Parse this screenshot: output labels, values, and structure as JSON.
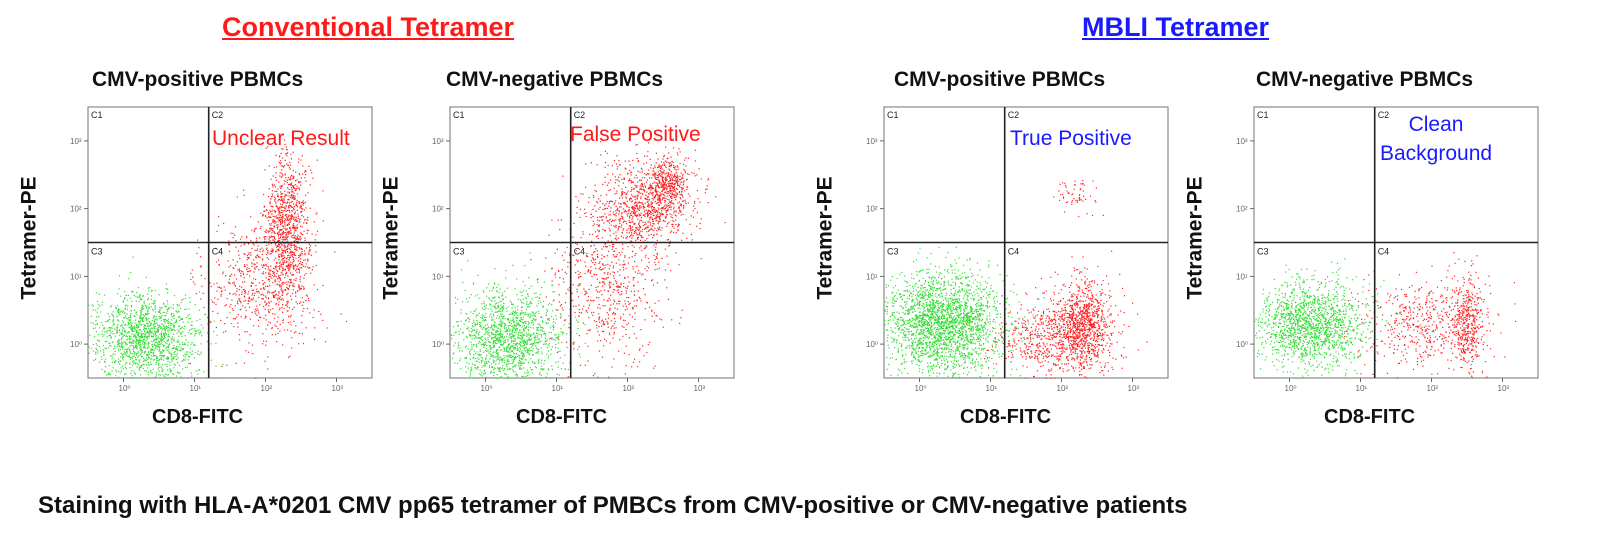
{
  "headers": [
    {
      "label": "Conventional Tetramer",
      "color": "#ff1a1a"
    },
    {
      "label": "MBLI Tetramer",
      "color": "#1a1aff"
    }
  ],
  "caption": "Staining with HLA-A*0201 CMV pp65 tetramer of PMBCs from CMV-positive or CMV-negative patients",
  "colors": {
    "negative_population": "#33dd33",
    "positive_population": "#ff2222",
    "conventional": "#ff1a1a",
    "mbli": "#1a1aff"
  },
  "chart_data": [
    {
      "type": "scatter",
      "title": "CMV-positive PBMCs",
      "xlabel": "CD8-FITC",
      "ylabel": "Tetramer-PE",
      "gates": [
        "C1",
        "C2",
        "C3",
        "C4"
      ],
      "x_ticks": [
        "10⁰",
        "10¹",
        "10²",
        "10³"
      ],
      "y_ticks": [
        "10⁰",
        "10¹",
        "10²",
        "10³"
      ],
      "xlim": [
        -0.5,
        3.5
      ],
      "ylim": [
        -0.5,
        3.5
      ],
      "log_scale": true,
      "quadrant_gate": {
        "x": 1.2,
        "y": 1.5
      },
      "annotation": {
        "text": [
          "Unclear Result"
        ],
        "color": "#ff1a1a"
      },
      "series": [
        {
          "color": "#33dd33",
          "clusters": [
            {
              "cx": 0.3,
              "cy": 0.1,
              "sx": 0.38,
              "sy": 0.32,
              "n": 1500
            }
          ]
        },
        {
          "color": "#ff2222",
          "clusters": [
            {
              "cx": 1.9,
              "cy": 0.9,
              "sx": 0.4,
              "sy": 0.5,
              "n": 600
            },
            {
              "cx": 2.3,
              "cy": 1.7,
              "sx": 0.17,
              "sy": 0.55,
              "n": 1000
            }
          ]
        }
      ]
    },
    {
      "type": "scatter",
      "title": "CMV-negative PBMCs",
      "xlabel": "CD8-FITC",
      "ylabel": "Tetramer-PE",
      "gates": [
        "C1",
        "C2",
        "C3",
        "C4"
      ],
      "x_ticks": [
        "10⁰",
        "10¹",
        "10²",
        "10³"
      ],
      "y_ticks": [
        "10⁰",
        "10¹",
        "10²",
        "10³"
      ],
      "xlim": [
        -0.5,
        3.5
      ],
      "ylim": [
        -0.5,
        3.5
      ],
      "log_scale": true,
      "quadrant_gate": {
        "x": 1.2,
        "y": 1.5
      },
      "annotation": {
        "text": [
          "False Positive"
        ],
        "color": "#ff1a1a"
      },
      "series": [
        {
          "color": "#33dd33",
          "clusters": [
            {
              "cx": 0.3,
              "cy": 0.1,
              "sx": 0.38,
              "sy": 0.35,
              "n": 1500
            }
          ]
        },
        {
          "color": "#ff2222",
          "clusters": [
            {
              "cx": 1.7,
              "cy": 0.8,
              "sx": 0.4,
              "sy": 0.55,
              "n": 600
            },
            {
              "cx": 2.2,
              "cy": 2.0,
              "sx": 0.35,
              "sy": 0.35,
              "n": 900
            },
            {
              "cx": 2.55,
              "cy": 2.4,
              "sx": 0.15,
              "sy": 0.22,
              "n": 400
            }
          ]
        }
      ]
    },
    {
      "type": "scatter",
      "title": "CMV-positive PBMCs",
      "xlabel": "CD8-FITC",
      "ylabel": "Tetramer-PE",
      "gates": [
        "C1",
        "C2",
        "C3",
        "C4"
      ],
      "x_ticks": [
        "10⁰",
        "10¹",
        "10²",
        "10³"
      ],
      "y_ticks": [
        "10⁰",
        "10¹",
        "10²",
        "10³"
      ],
      "xlim": [
        -0.5,
        3.5
      ],
      "ylim": [
        -0.5,
        3.5
      ],
      "log_scale": true,
      "quadrant_gate": {
        "x": 1.2,
        "y": 1.5
      },
      "annotation": {
        "text": [
          "True Positive"
        ],
        "color": "#1a1aff"
      },
      "series": [
        {
          "color": "#33dd33",
          "clusters": [
            {
              "cx": 0.35,
              "cy": 0.3,
              "sx": 0.42,
              "sy": 0.38,
              "n": 2400
            }
          ]
        },
        {
          "color": "#ff2222",
          "clusters": [
            {
              "cx": 1.9,
              "cy": 0.1,
              "sx": 0.42,
              "sy": 0.3,
              "n": 700
            },
            {
              "cx": 2.3,
              "cy": 0.3,
              "sx": 0.17,
              "sy": 0.35,
              "n": 800
            },
            {
              "cx": 2.2,
              "cy": 2.2,
              "sx": 0.15,
              "sy": 0.13,
              "n": 60
            }
          ]
        }
      ]
    },
    {
      "type": "scatter",
      "title": "CMV-negative PBMCs",
      "xlabel": "CD8-FITC",
      "ylabel": "Tetramer-PE",
      "gates": [
        "C1",
        "C2",
        "C3",
        "C4"
      ],
      "x_ticks": [
        "10⁰",
        "10¹",
        "10²",
        "10³"
      ],
      "y_ticks": [
        "10⁰",
        "10¹",
        "10²",
        "10³"
      ],
      "xlim": [
        -0.5,
        3.5
      ],
      "ylim": [
        -0.5,
        3.5
      ],
      "log_scale": true,
      "quadrant_gate": {
        "x": 1.2,
        "y": 1.5
      },
      "annotation": {
        "text": [
          "Clean",
          "Background"
        ],
        "color": "#1a1aff"
      },
      "series": [
        {
          "color": "#33dd33",
          "clusters": [
            {
              "cx": 0.3,
              "cy": 0.3,
              "sx": 0.38,
              "sy": 0.32,
              "n": 1500
            }
          ]
        },
        {
          "color": "#ff2222",
          "clusters": [
            {
              "cx": 1.9,
              "cy": 0.3,
              "sx": 0.45,
              "sy": 0.35,
              "n": 500
            },
            {
              "cx": 2.5,
              "cy": 0.3,
              "sx": 0.12,
              "sy": 0.35,
              "n": 400
            }
          ]
        }
      ]
    }
  ]
}
